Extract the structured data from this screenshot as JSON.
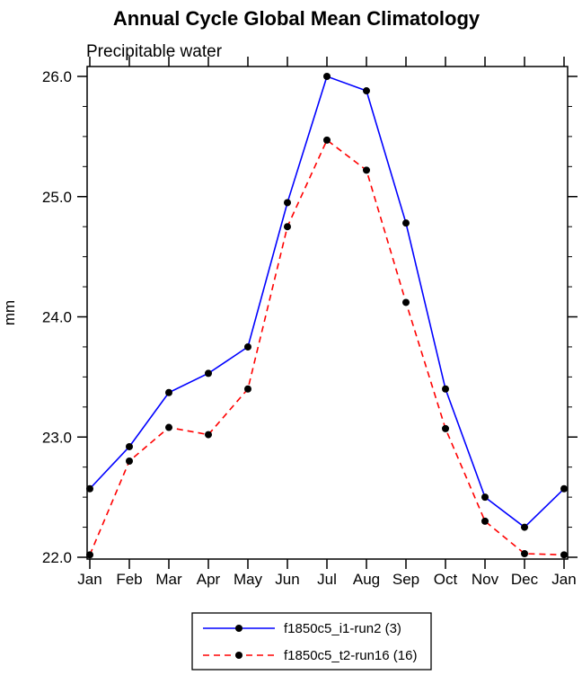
{
  "title": "Annual Cycle Global Mean Climatology",
  "chart_data": {
    "type": "line",
    "subtitle": "Precipitable water",
    "ylabel": "mm",
    "xlabel": "",
    "categories": [
      "Jan",
      "Feb",
      "Mar",
      "Apr",
      "May",
      "Jun",
      "Jul",
      "Aug",
      "Sep",
      "Oct",
      "Nov",
      "Dec",
      "Jan"
    ],
    "ylim": [
      22.0,
      26.0
    ],
    "yticks": [
      22.0,
      23.0,
      24.0,
      25.0,
      26.0
    ],
    "ytick_format": "one_decimal",
    "y_minor_interval": 0.25,
    "grid": false,
    "legend_position": "bottom-center",
    "marker_color": "#000000",
    "series": [
      {
        "name": "f1850c5_i1-run2 (3)",
        "color": "#0000ff",
        "style": "solid",
        "marker": "black-dot",
        "values": [
          22.57,
          22.92,
          23.37,
          23.53,
          23.75,
          24.95,
          26.0,
          25.88,
          24.78,
          23.4,
          22.5,
          22.25,
          22.57
        ]
      },
      {
        "name": "f1850c5_t2-run16 (16)",
        "color": "#ff0000",
        "style": "dashed",
        "marker": "black-dot",
        "values": [
          22.02,
          22.8,
          23.08,
          23.02,
          23.4,
          24.75,
          25.47,
          25.22,
          24.12,
          23.07,
          22.3,
          22.03,
          22.02
        ]
      }
    ]
  }
}
